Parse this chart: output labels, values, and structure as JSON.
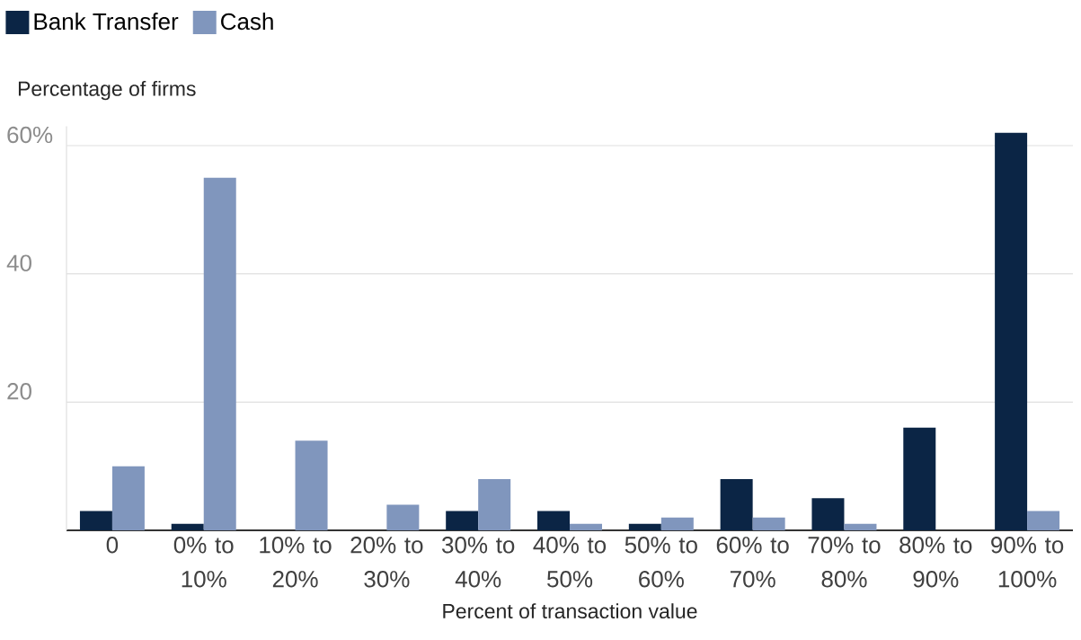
{
  "chart_data": {
    "type": "bar",
    "xlabel": "Percent of transaction value",
    "ylabel": "Percentage of firms",
    "categories": [
      "0",
      "0% to 10%",
      "10% to 20%",
      "20% to 30%",
      "30% to 40%",
      "40% to 50%",
      "50% to 60%",
      "60% to 70%",
      "70% to 80%",
      "80% to 90%",
      "90% to 100%"
    ],
    "series": [
      {
        "name": "Bank Transfer",
        "color": "#0b2545",
        "values": [
          3,
          1,
          0,
          0,
          3,
          3,
          1,
          8,
          5,
          16,
          62
        ]
      },
      {
        "name": "Cash",
        "color": "#8096bd",
        "values": [
          10,
          55,
          14,
          4,
          8,
          1,
          2,
          2,
          1,
          0,
          3
        ]
      }
    ],
    "ylim": [
      0,
      63
    ],
    "yticks": [
      20,
      40,
      {
        "value": 60,
        "label": "60%"
      }
    ],
    "grid": "y",
    "legend": "top left"
  }
}
